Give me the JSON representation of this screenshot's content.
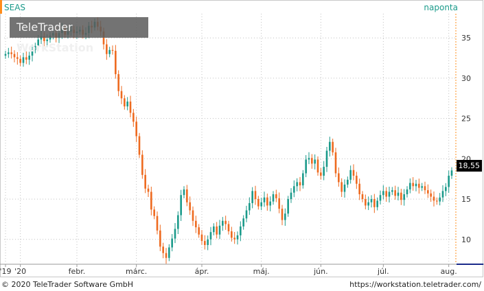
{
  "header": {
    "symbol": "SEAS",
    "period": "naponta"
  },
  "watermark": {
    "part1": "TeleTrader ",
    "part2": "WorkStation"
  },
  "footer": {
    "copyright": "© 2020 TeleTrader Software GmbH",
    "url": "https://workstation.teletrader.com/"
  },
  "last_price": "18,55",
  "colors": {
    "up": "#1a9a8a",
    "down": "#ee6a1f",
    "accent": "#ff8c1a",
    "grid": "#c0c0c0"
  },
  "chart_data": {
    "type": "candlestick",
    "title": "SEAS",
    "ylim": [
      7,
      38
    ],
    "yticks": [
      10,
      15,
      20,
      25,
      30,
      35
    ],
    "ytick_labels": [
      "10",
      "15",
      "20",
      "25",
      "30",
      "35"
    ],
    "xticks": [
      {
        "label": "'19",
        "index": 0
      },
      {
        "label": "'20",
        "index": 5
      },
      {
        "label": "febr.",
        "index": 24
      },
      {
        "label": "márc.",
        "index": 44
      },
      {
        "label": "ápr.",
        "index": 66
      },
      {
        "label": "máj.",
        "index": 86
      },
      {
        "label": "jún.",
        "index": 106
      },
      {
        "label": "júl.",
        "index": 127
      },
      {
        "label": "aug.",
        "index": 149
      }
    ],
    "closes": [
      33.0,
      33.2,
      33.0,
      32.6,
      32.4,
      31.9,
      32.6,
      32.3,
      32.8,
      33.5,
      34.0,
      34.8,
      35.2,
      34.6,
      34.8,
      35.3,
      35.6,
      35.0,
      35.6,
      36.2,
      35.4,
      35.8,
      36.0,
      35.6,
      35.8,
      36.0,
      35.4,
      35.6,
      36.5,
      36.3,
      37.0,
      36.4,
      35.8,
      34.2,
      33.0,
      33.5,
      33.4,
      30.5,
      28.4,
      27.5,
      26.5,
      27.1,
      25.7,
      24.6,
      22.8,
      20.5,
      18.0,
      16.3,
      15.9,
      13.7,
      12.9,
      11.1,
      9.1,
      8.3,
      7.7,
      9.0,
      10.1,
      11.3,
      13.0,
      15.5,
      16.2,
      14.6,
      13.6,
      12.3,
      11.5,
      10.6,
      9.8,
      9.3,
      10.0,
      10.9,
      11.6,
      10.6,
      11.7,
      12.3,
      11.9,
      11.0,
      10.2,
      10.0,
      10.5,
      11.6,
      12.6,
      13.6,
      14.5,
      16.0,
      15.0,
      14.1,
      14.6,
      15.2,
      14.2,
      14.7,
      15.6,
      15.1,
      13.8,
      12.4,
      13.2,
      15.0,
      15.8,
      16.6,
      17.1,
      16.7,
      18.2,
      19.9,
      20.1,
      19.4,
      19.9,
      18.3,
      17.9,
      19.0,
      21.0,
      22.1,
      20.8,
      18.2,
      17.1,
      15.9,
      16.8,
      17.4,
      18.6,
      17.9,
      16.9,
      15.6,
      15.0,
      14.2,
      14.6,
      15.0,
      14.0,
      14.8,
      15.5,
      16.0,
      15.3,
      15.9,
      16.1,
      15.4,
      15.8,
      14.9,
      15.6,
      16.2,
      17.0,
      16.6,
      16.9,
      16.4,
      16.6,
      16.1,
      15.7,
      15.3,
      14.8,
      14.7,
      15.2,
      16.0,
      16.5,
      17.9,
      18.55
    ]
  }
}
